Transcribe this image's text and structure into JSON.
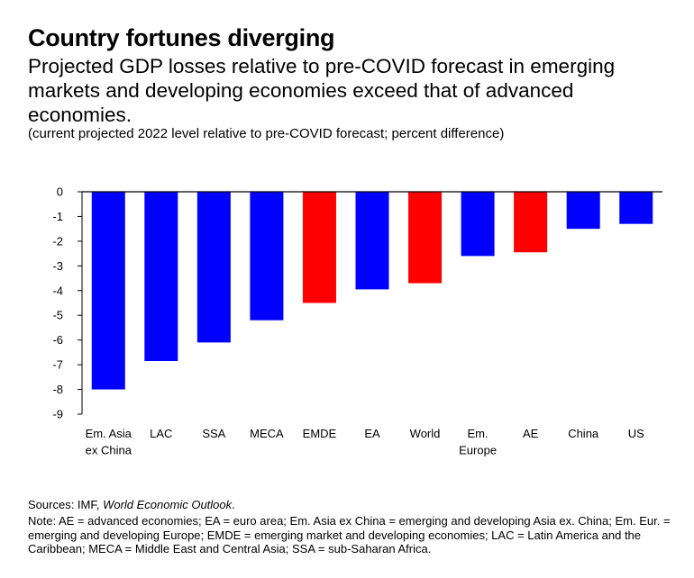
{
  "header": {
    "title": "Country fortunes diverging",
    "subtitle": "Projected GDP losses relative to pre-COVID forecast in emerging markets and developing economies exceed that of advanced economies.",
    "units": "(current projected 2022 level relative to pre-COVID forecast; percent difference)"
  },
  "footer": {
    "sources_label": "Sources: IMF, ",
    "sources_title": "World Economic Outlook",
    "sources_end": ".",
    "note": "Note: AE = advanced economies; EA = euro area; Em. Asia ex China = emerging and developing Asia ex. China; Em. Eur. = emerging and developing Europe; EMDE = emerging market and developing economies; LAC = Latin America and the Caribbean; MECA = Middle East and Central Asia; SSA = sub-Saharan Africa."
  },
  "colors": {
    "blue": "#0000ff",
    "red": "#ff0000",
    "axis": "#000000"
  },
  "chart_data": {
    "type": "bar",
    "categories": [
      "Em. Asia ex China",
      "LAC",
      "SSA",
      "MECA",
      "EMDE",
      "EA",
      "World",
      "Em. Europe",
      "AE",
      "China",
      "US"
    ],
    "category_label_lines": [
      [
        "Em. Asia",
        "ex China"
      ],
      [
        "LAC"
      ],
      [
        "SSA"
      ],
      [
        "MECA"
      ],
      [
        "EMDE"
      ],
      [
        "EA"
      ],
      [
        "World"
      ],
      [
        "Em.",
        "Europe"
      ],
      [
        "AE"
      ],
      [
        "China"
      ],
      [
        "US"
      ]
    ],
    "values": [
      -8.0,
      -6.85,
      -6.1,
      -5.2,
      -4.5,
      -3.95,
      -3.7,
      -2.6,
      -2.45,
      -1.5,
      -1.3
    ],
    "bar_colors": [
      "blue",
      "blue",
      "blue",
      "blue",
      "red",
      "blue",
      "red",
      "blue",
      "red",
      "blue",
      "blue"
    ],
    "ylim": [
      -9,
      0
    ],
    "yticks": [
      0,
      -1,
      -2,
      -3,
      -4,
      -5,
      -6,
      -7,
      -8,
      -9
    ],
    "grid": false
  }
}
